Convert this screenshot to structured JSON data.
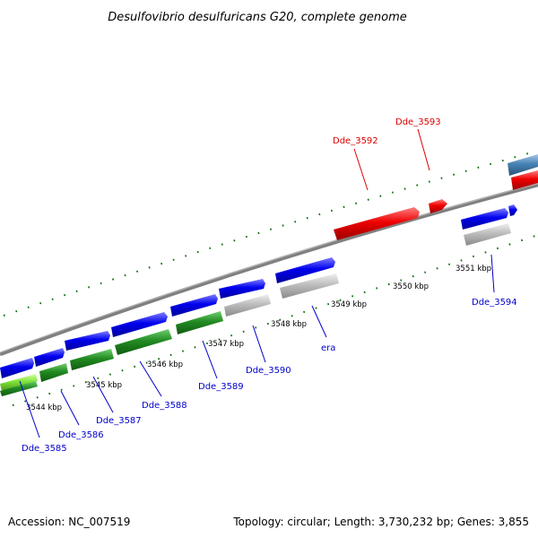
{
  "title": "Desulfovibrio desulfuricans G20, complete genome",
  "footer": {
    "accession": "Accession: NC_007519",
    "summary": "Topology: circular; Length: 3,730,232 bp; Genes: 3,855"
  },
  "colors": {
    "backbone": "#808080",
    "tick": "#0a6e0a",
    "forward_cds": "#0000ee",
    "reverse_cds": "#228b22",
    "highlight": "#ee0000",
    "rna": "#bdbdbd",
    "steel": "#4682b4",
    "lime": "#7fe43a",
    "label_blue": "#0000cc",
    "label_red": "#dd0000"
  },
  "scale_labels": [
    {
      "id": "kbp-3544",
      "text": "3544 kbp"
    },
    {
      "id": "kbp-3545",
      "text": "3545 kbp"
    },
    {
      "id": "kbp-3546",
      "text": "3546 kbp"
    },
    {
      "id": "kbp-3547",
      "text": "3547 kbp"
    },
    {
      "id": "kbp-3548",
      "text": "3548 kbp"
    },
    {
      "id": "kbp-3549",
      "text": "3549 kbp"
    },
    {
      "id": "kbp-3550",
      "text": "3550 kbp"
    },
    {
      "id": "kbp-3551",
      "text": "3551 kbp"
    }
  ],
  "gene_labels": [
    {
      "id": "dde-3585",
      "text": "Dde_3585",
      "color": "blue"
    },
    {
      "id": "dde-3586",
      "text": "Dde_3586",
      "color": "blue"
    },
    {
      "id": "dde-3587",
      "text": "Dde_3587",
      "color": "blue"
    },
    {
      "id": "dde-3588",
      "text": "Dde_3588",
      "color": "blue"
    },
    {
      "id": "dde-3589",
      "text": "Dde_3589",
      "color": "blue"
    },
    {
      "id": "dde-3590",
      "text": "Dde_3590",
      "color": "blue"
    },
    {
      "id": "era",
      "text": "era",
      "color": "blue"
    },
    {
      "id": "dde-3592",
      "text": "Dde_3592",
      "color": "red"
    },
    {
      "id": "dde-3593",
      "text": "Dde_3593",
      "color": "red"
    },
    {
      "id": "dde-3594",
      "text": "Dde_3594",
      "color": "blue"
    }
  ]
}
